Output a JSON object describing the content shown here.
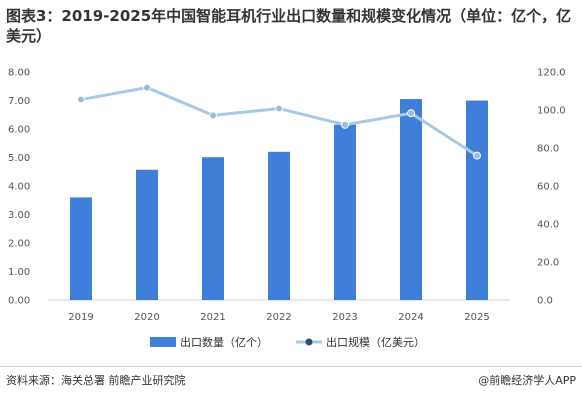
{
  "title": "图表3：2019-2025年中国智能耳机行业出口数量和规模变化情况（单位：亿个，亿美元）",
  "source": "资料来源：海关总署  前瞻产业研究院",
  "credit": "@前瞻经济学人APP",
  "colors": {
    "bar": "#3f7fd9",
    "line": "#a9c8e8",
    "marker": "#9bbbe0"
  },
  "chart_data": {
    "type": "bar",
    "categories": [
      "2019",
      "2020",
      "2021",
      "2022",
      "2023",
      "2024",
      "2025"
    ],
    "series": [
      {
        "name": "出口数量（亿个）",
        "axis": "left",
        "type": "bar",
        "values": [
          3.6,
          4.57,
          5.01,
          5.2,
          6.15,
          7.05,
          7.0
        ]
      },
      {
        "name": "出口规模（亿美元）",
        "axis": "right",
        "type": "line",
        "values": [
          105.5,
          111.8,
          97.2,
          100.8,
          92.2,
          98.3,
          76.0
        ]
      }
    ],
    "ylim_left": [
      0,
      8
    ],
    "ylim_right": [
      0,
      120
    ],
    "yticks_left": [
      "0.00",
      "1.00",
      "2.00",
      "3.00",
      "4.00",
      "5.00",
      "6.00",
      "7.00",
      "8.00"
    ],
    "yticks_right": [
      "0.0",
      "20.0",
      "40.0",
      "60.0",
      "80.0",
      "100.0",
      "120.0"
    ],
    "legend_position": "bottom-center",
    "grid": false
  }
}
